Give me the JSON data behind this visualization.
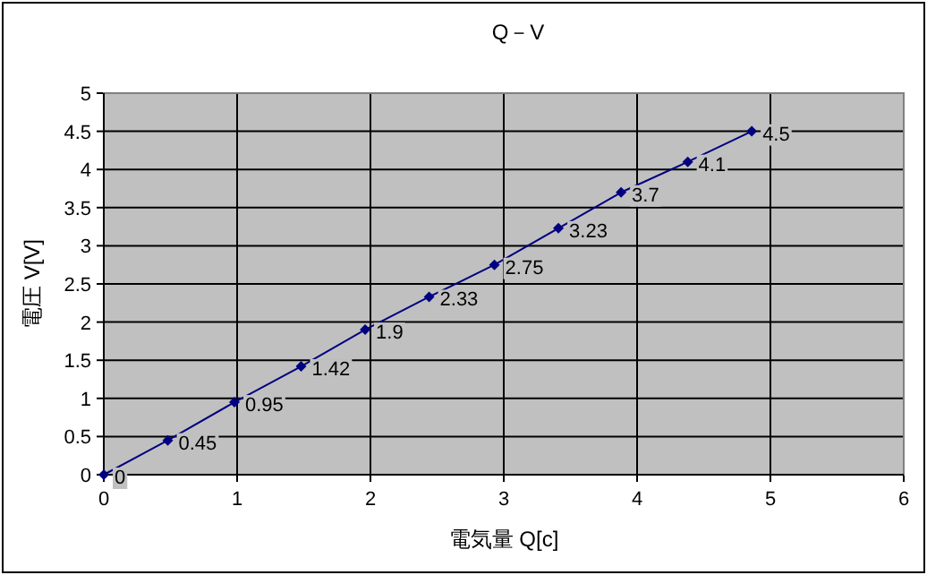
{
  "chart_data": {
    "type": "line",
    "title": "Q－V",
    "xlabel": "電気量 Q[c]",
    "ylabel": "電圧 V[V]",
    "x": [
      0,
      0.48,
      0.98,
      1.48,
      1.96,
      2.44,
      2.93,
      3.41,
      3.88,
      4.38,
      4.86
    ],
    "series": [
      {
        "color": "#000080",
        "values": [
          0,
          0.45,
          0.95,
          1.42,
          1.9,
          2.33,
          2.75,
          3.23,
          3.7,
          4.1,
          4.5
        ]
      }
    ],
    "xlim": [
      0,
      6
    ],
    "ylim": [
      0,
      5
    ],
    "xticks": [
      0,
      1,
      2,
      3,
      4,
      5,
      6
    ],
    "yticks": [
      0,
      0.5,
      1,
      1.5,
      2,
      2.5,
      3,
      3.5,
      4,
      4.5,
      5
    ],
    "grid": true,
    "marker": "diamond",
    "line_style": "solid",
    "data_labels": true
  }
}
